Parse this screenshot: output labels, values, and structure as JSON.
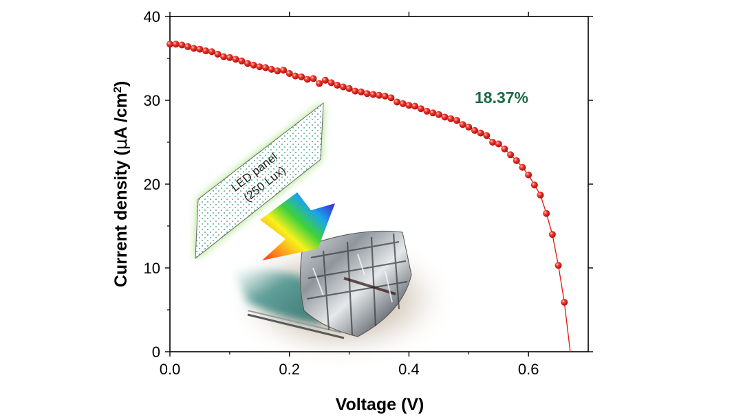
{
  "colors": {
    "data_marker": "#e3120b",
    "efficiency_text": "#1d6b45",
    "panel_glow": "#8fdc5a",
    "axis": "#000000"
  },
  "annotation": {
    "efficiency": "18.37%"
  },
  "inset": {
    "panel_line1": "LED panel",
    "panel_line2": "(250 Lux)",
    "icons": [
      "led-panel-icon",
      "rainbow-arrow-icon",
      "flexible-solar-cell-photo"
    ]
  },
  "chart_data": {
    "type": "scatter",
    "xlabel": "Voltage (V)",
    "ylabel_prefix": "Current density (",
    "ylabel_mu": "μ",
    "ylabel_unit": "A /cm",
    "ylabel_sup": "2",
    "ylabel_suffix": ")",
    "xlim": [
      0.0,
      0.7
    ],
    "ylim": [
      0,
      40
    ],
    "xticks": [
      "0.0",
      "0.2",
      "0.4",
      "0.6"
    ],
    "yticks": [
      "0",
      "10",
      "20",
      "30",
      "40"
    ],
    "grid": false,
    "series": [
      {
        "points": [
          [
            0.0,
            36.7
          ],
          [
            0.01,
            36.7
          ],
          [
            0.02,
            36.6
          ],
          [
            0.03,
            36.4
          ],
          [
            0.04,
            36.2
          ],
          [
            0.05,
            36.1
          ],
          [
            0.06,
            35.9
          ],
          [
            0.07,
            35.8
          ],
          [
            0.08,
            35.5
          ],
          [
            0.09,
            35.2
          ],
          [
            0.1,
            35.1
          ],
          [
            0.11,
            34.9
          ],
          [
            0.12,
            34.7
          ],
          [
            0.13,
            34.4
          ],
          [
            0.14,
            34.2
          ],
          [
            0.15,
            34.0
          ],
          [
            0.16,
            33.9
          ],
          [
            0.17,
            33.7
          ],
          [
            0.18,
            33.5
          ],
          [
            0.19,
            33.6
          ],
          [
            0.2,
            33.2
          ],
          [
            0.21,
            32.9
          ],
          [
            0.22,
            32.8
          ],
          [
            0.23,
            32.5
          ],
          [
            0.24,
            32.6
          ],
          [
            0.25,
            32.0
          ],
          [
            0.26,
            32.4
          ],
          [
            0.27,
            32.1
          ],
          [
            0.28,
            31.8
          ],
          [
            0.29,
            31.6
          ],
          [
            0.3,
            31.4
          ],
          [
            0.31,
            31.1
          ],
          [
            0.32,
            31.0
          ],
          [
            0.33,
            30.8
          ],
          [
            0.34,
            30.7
          ],
          [
            0.35,
            30.6
          ],
          [
            0.36,
            30.5
          ],
          [
            0.37,
            30.3
          ],
          [
            0.38,
            29.8
          ],
          [
            0.39,
            29.6
          ],
          [
            0.4,
            29.4
          ],
          [
            0.41,
            29.3
          ],
          [
            0.42,
            29.0
          ],
          [
            0.43,
            28.7
          ],
          [
            0.44,
            28.5
          ],
          [
            0.45,
            28.3
          ],
          [
            0.46,
            28.0
          ],
          [
            0.47,
            27.8
          ],
          [
            0.48,
            27.6
          ],
          [
            0.49,
            27.1
          ],
          [
            0.5,
            26.8
          ],
          [
            0.51,
            26.4
          ],
          [
            0.52,
            26.1
          ],
          [
            0.53,
            25.8
          ],
          [
            0.54,
            25.0
          ],
          [
            0.55,
            24.8
          ],
          [
            0.56,
            24.2
          ],
          [
            0.57,
            23.5
          ],
          [
            0.58,
            22.8
          ],
          [
            0.59,
            22.0
          ],
          [
            0.6,
            21.1
          ],
          [
            0.61,
            19.9
          ],
          [
            0.62,
            18.7
          ],
          [
            0.63,
            16.5
          ],
          [
            0.64,
            14.0
          ],
          [
            0.65,
            10.3
          ],
          [
            0.66,
            5.9
          ],
          [
            0.67,
            0.0
          ]
        ]
      }
    ]
  }
}
